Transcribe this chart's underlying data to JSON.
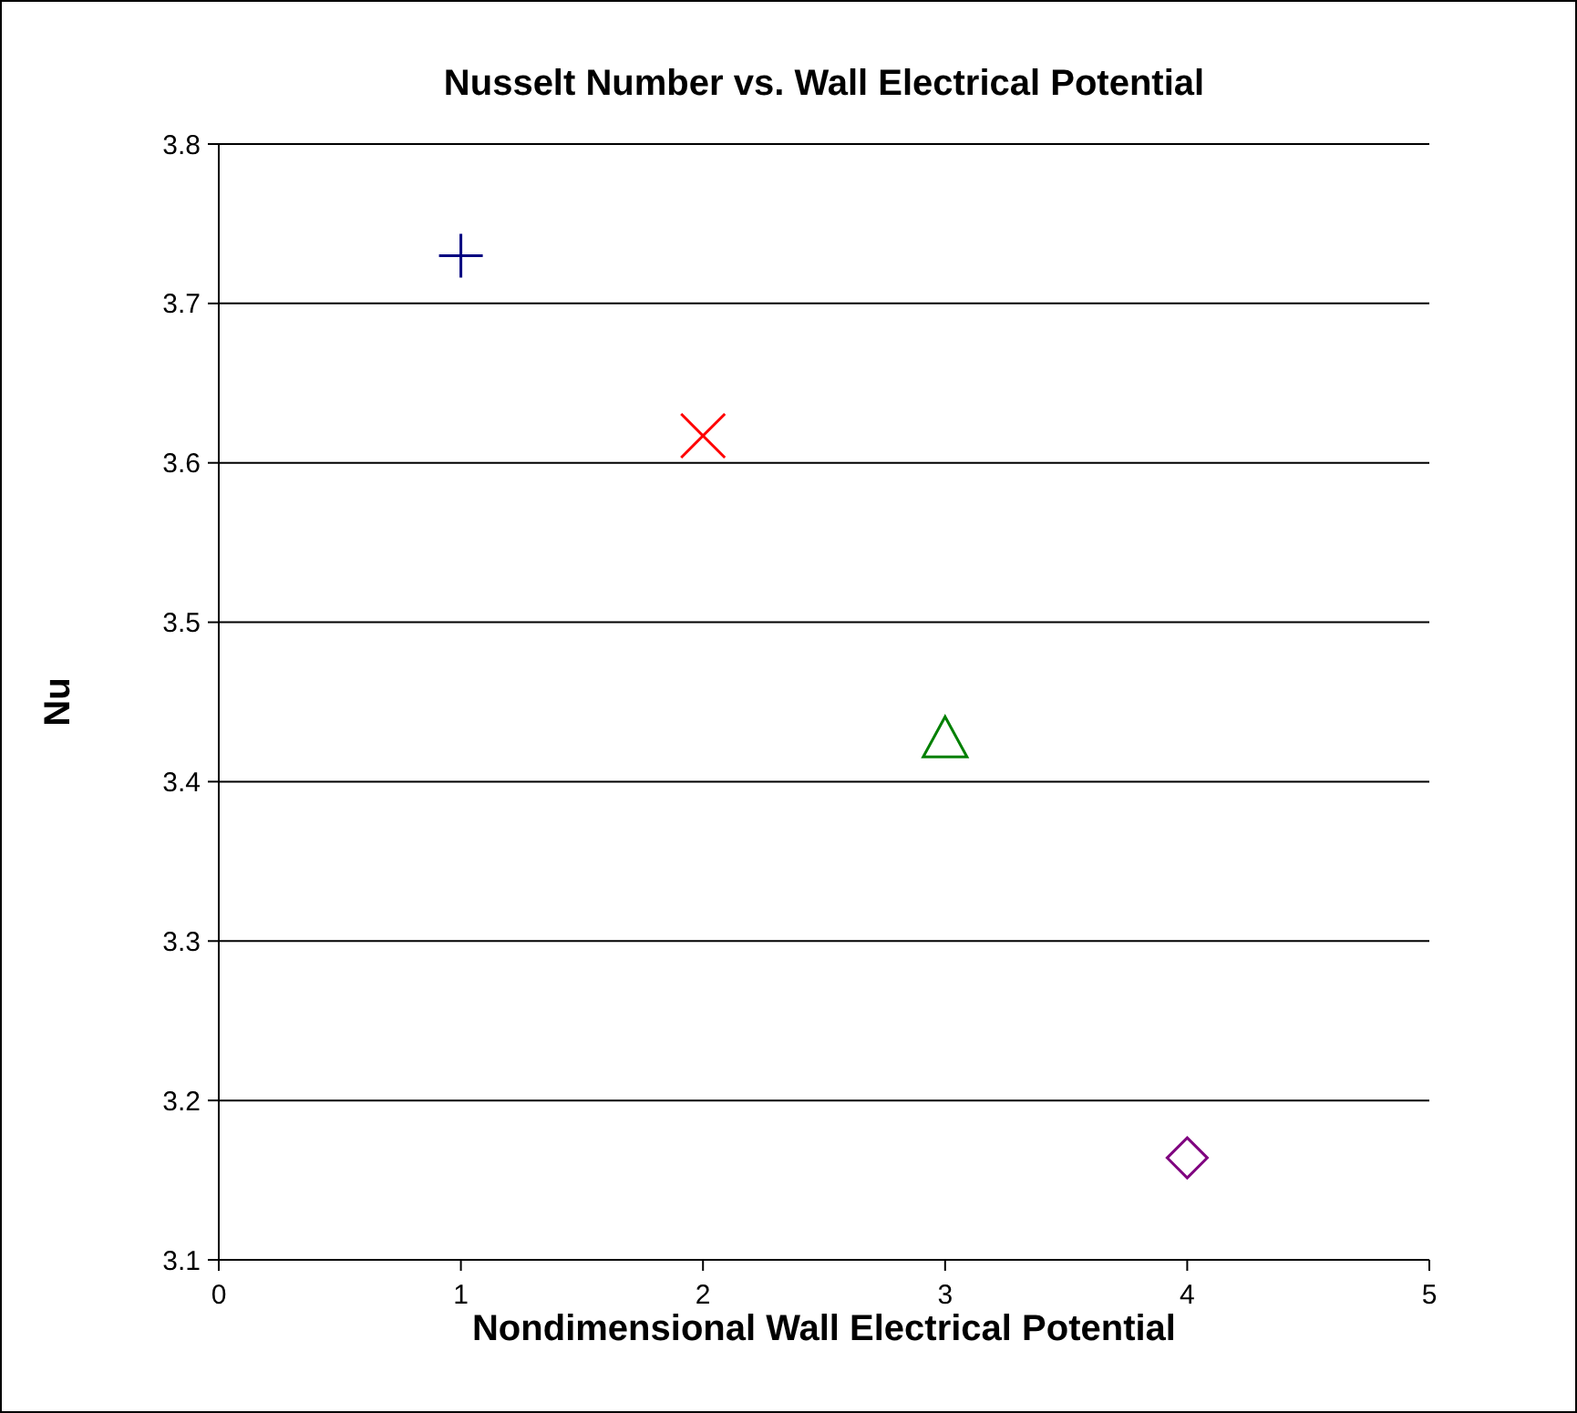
{
  "chart_data": {
    "type": "scatter",
    "title": "Nusselt Number vs. Wall Electrical Potential",
    "xlabel": "Nondimensional Wall Electrical Potential",
    "ylabel": "Nu",
    "xlim": [
      0,
      5
    ],
    "xticks": [
      0,
      1,
      2,
      3,
      4,
      5
    ],
    "ylim": [
      3.1,
      3.8
    ],
    "yticks": [
      {
        "value": 3.1,
        "label": "3.1"
      },
      {
        "value": 3.2,
        "label": "3.2"
      },
      {
        "value": 3.3,
        "label": "3.3"
      },
      {
        "value": 3.4,
        "label": "3.4"
      },
      {
        "value": 3.5,
        "label": "3.5"
      },
      {
        "value": 3.6,
        "label": "3.6"
      },
      {
        "value": 3.7,
        "label": "3.7"
      },
      {
        "value": 3.8,
        "label": "3.8"
      }
    ],
    "grid": "y",
    "series": [
      {
        "x": [
          1
        ],
        "values": [
          3.73
        ],
        "color": "#000080",
        "marker": "cross"
      },
      {
        "x": [
          2
        ],
        "values": [
          3.617
        ],
        "color": "#ff0000",
        "marker": "x"
      },
      {
        "x": [
          3
        ],
        "values": [
          3.427
        ],
        "color": "#008000",
        "marker": "triangle"
      },
      {
        "x": [
          4
        ],
        "values": [
          3.164
        ],
        "color": "#800080",
        "marker": "diamond"
      }
    ]
  }
}
